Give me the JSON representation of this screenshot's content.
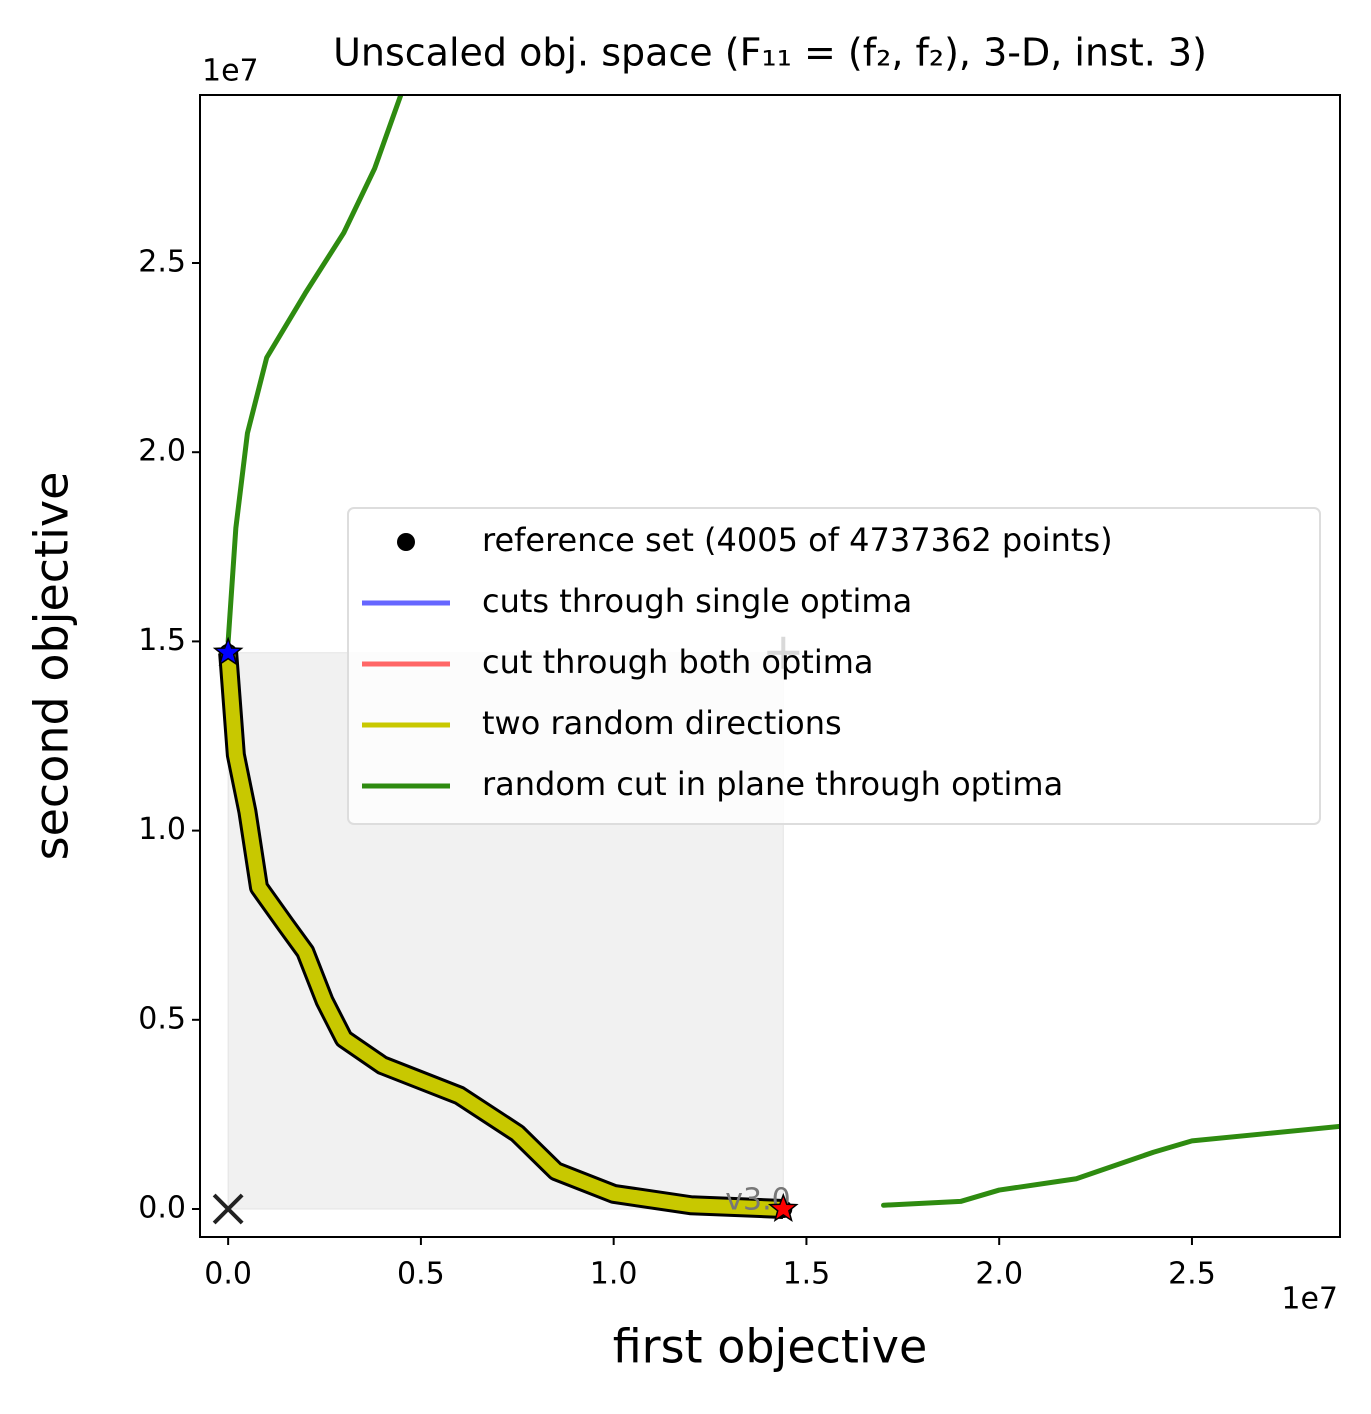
{
  "chart_data": {
    "type": "line",
    "title": "Unscaled obj. space (F₁₁ = (f₂, f₂), 3-D, inst. 3)",
    "xlabel": "first objective",
    "ylabel": "second objective",
    "x_offset_label": "1e7",
    "y_offset_label": "1e7",
    "xlim": [
      -0.073,
      2.884
    ],
    "ylim": [
      -0.074,
      2.944
    ],
    "xticks": [
      {
        "value": 0,
        "label": "0.0"
      },
      {
        "value": 0.5,
        "label": "0.5"
      },
      {
        "value": 1,
        "label": "1.0"
      },
      {
        "value": 1.5,
        "label": "1.5"
      },
      {
        "value": 2,
        "label": "2.0"
      },
      {
        "value": 2.5,
        "label": "2.5"
      }
    ],
    "yticks": [
      {
        "value": 0,
        "label": "0.0"
      },
      {
        "value": 0.5,
        "label": "0.5"
      },
      {
        "value": 1,
        "label": "1.0"
      },
      {
        "value": 1.5,
        "label": "1.5"
      },
      {
        "value": 2,
        "label": "2.0"
      },
      {
        "value": 2.5,
        "label": "2.5"
      }
    ],
    "legend_loc": "center right",
    "series": [
      {
        "name": "reference set (4005 of 4737362 points)",
        "color": "#000000",
        "style": "dots",
        "x": [
          0,
          0.02,
          0.05,
          0.08,
          0.15,
          0.2,
          0.25,
          0.3,
          0.4,
          0.6,
          0.75,
          0.85,
          1.0,
          1.2,
          1.44
        ],
        "values": [
          1.47,
          1.2,
          1.05,
          0.85,
          0.75,
          0.68,
          0.55,
          0.45,
          0.38,
          0.3,
          0.2,
          0.1,
          0.04,
          0.01,
          0
        ]
      },
      {
        "name": "cuts through single optima",
        "color": "#6666ff",
        "style": "line",
        "x": [
          0,
          0.02,
          0.05,
          0.08,
          0.15,
          0.2,
          0.25,
          0.3,
          0.4,
          0.6,
          0.75,
          0.85,
          1.0,
          1.2,
          1.44
        ],
        "values": [
          1.47,
          1.2,
          1.05,
          0.85,
          0.75,
          0.68,
          0.55,
          0.45,
          0.38,
          0.3,
          0.2,
          0.1,
          0.04,
          0.01,
          0
        ]
      },
      {
        "name": "cut through both optima",
        "color": "#ff6666",
        "style": "line",
        "x": [
          0,
          0.02,
          0.05,
          0.08,
          0.15,
          0.2,
          0.25,
          0.3,
          0.4,
          0.6,
          0.75,
          0.85,
          1.0,
          1.2,
          1.44
        ],
        "values": [
          1.47,
          1.2,
          1.05,
          0.85,
          0.75,
          0.68,
          0.55,
          0.45,
          0.38,
          0.3,
          0.2,
          0.1,
          0.04,
          0.01,
          0
        ]
      },
      {
        "name": "two random directions",
        "color": "#c8c800",
        "style": "thick",
        "x": [
          0,
          0.02,
          0.05,
          0.08,
          0.15,
          0.2,
          0.25,
          0.3,
          0.4,
          0.6,
          0.75,
          0.85,
          1.0,
          1.2,
          1.44
        ],
        "values": [
          1.47,
          1.2,
          1.05,
          0.85,
          0.75,
          0.68,
          0.55,
          0.45,
          0.38,
          0.3,
          0.2,
          0.1,
          0.04,
          0.01,
          0
        ]
      },
      {
        "name": "random cut in plane through optima",
        "color": "#2e8b10",
        "style": "line",
        "x": [
          0.45,
          0.38,
          0.3,
          0.2,
          0.1,
          0.05,
          0.02,
          0,
          1.44,
          1.7,
          1.9,
          2.0,
          2.2,
          2.4,
          2.5,
          2.7,
          2.9
        ],
        "values": [
          2.95,
          2.75,
          2.58,
          2.42,
          2.25,
          2.05,
          1.8,
          1.5,
          null,
          0.01,
          0.02,
          0.05,
          0.08,
          0.15,
          0.18,
          0.2,
          0.22
        ]
      }
    ],
    "optima": [
      {
        "x": 0,
        "y": 1.47,
        "color": "#0000ff"
      },
      {
        "x": 1.44,
        "y": 0,
        "color": "#ff0000"
      }
    ],
    "ideal": {
      "x": 0,
      "y": 0
    },
    "nadir": {
      "x": 1.44,
      "y": 1.47
    },
    "annotation": {
      "text": "v3.0",
      "x": 1.44,
      "y": 0
    }
  }
}
